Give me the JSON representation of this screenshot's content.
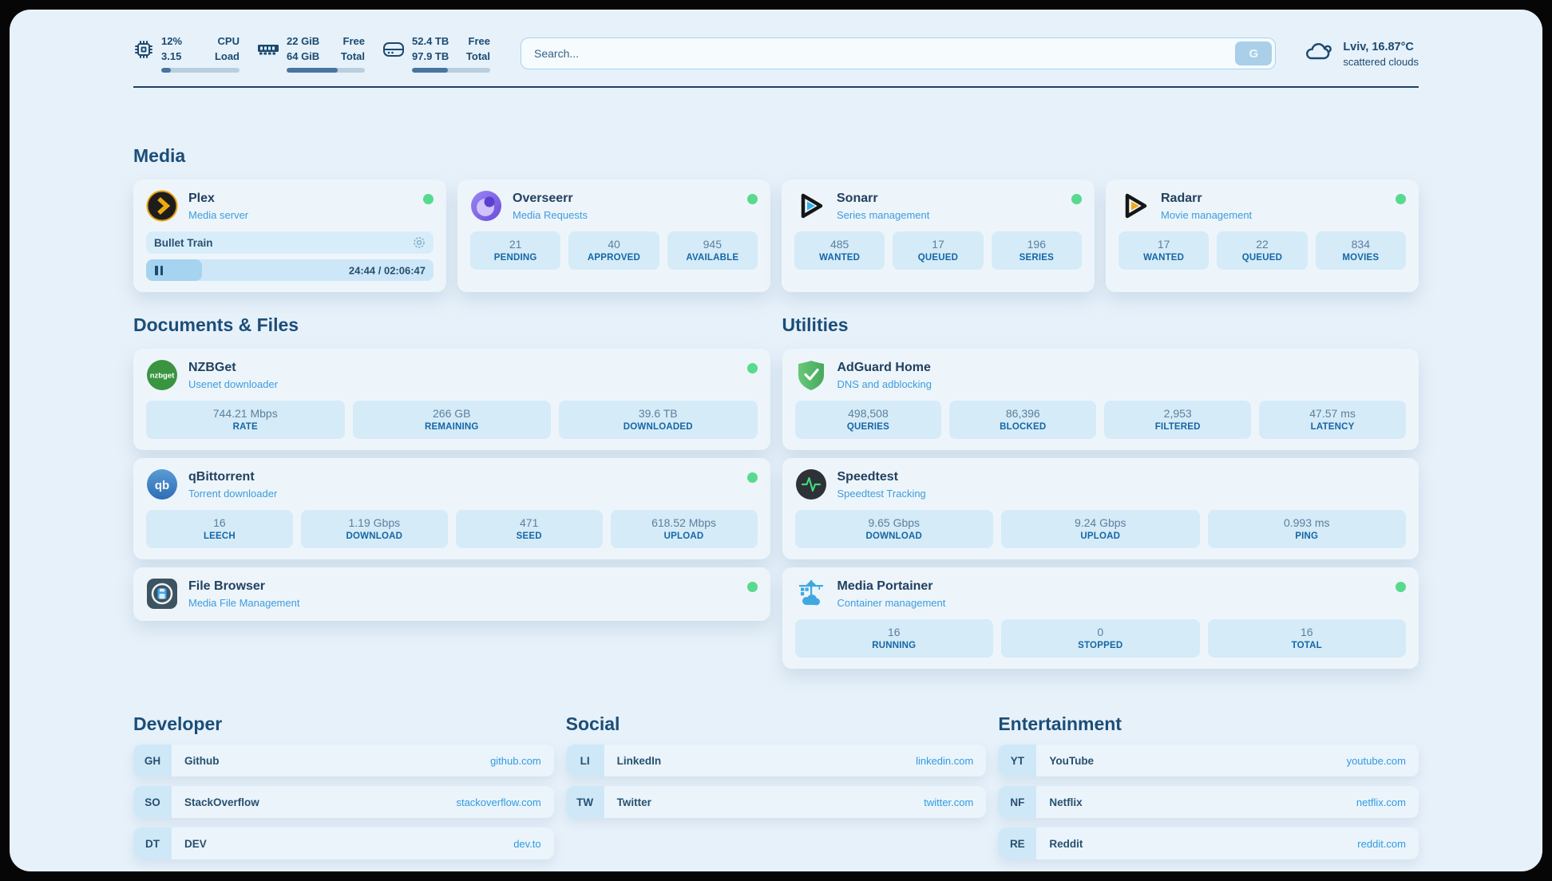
{
  "topbar": {
    "cpu": {
      "icon": "cpu-icon",
      "value1": "12%",
      "value2": "3.15",
      "label1": "CPU",
      "label2": "Load",
      "percent": 12
    },
    "ram": {
      "icon": "ram-icon",
      "value1": "22 GiB",
      "value2": "64 GiB",
      "label1": "Free",
      "label2": "Total",
      "percent": 65
    },
    "disk": {
      "icon": "disk-icon",
      "value1": "52.4 TB",
      "value2": "97.9 TB",
      "label1": "Free",
      "label2": "Total",
      "percent": 46
    },
    "search": {
      "placeholder": "Search...",
      "button_label": "G"
    },
    "weather": {
      "icon": "cloud-icon",
      "location": "Lviv, 16.87°C",
      "condition": "scattered clouds"
    }
  },
  "sections": {
    "media": {
      "title": "Media"
    },
    "documents": {
      "title": "Documents & Files"
    },
    "utilities": {
      "title": "Utilities"
    }
  },
  "apps": {
    "plex": {
      "icon": "plex-icon",
      "title": "Plex",
      "subtitle": "Media server",
      "online": true,
      "now_playing": "Bullet Train",
      "time_display": "24:44 / 02:06:47",
      "progress_percent": 19.5
    },
    "overseerr": {
      "icon": "overseerr-icon",
      "title": "Overseerr",
      "subtitle": "Media Requests",
      "online": true,
      "stats": [
        {
          "value": "21",
          "label": "PENDING"
        },
        {
          "value": "40",
          "label": "APPROVED"
        },
        {
          "value": "945",
          "label": "AVAILABLE"
        }
      ]
    },
    "sonarr": {
      "icon": "sonarr-icon",
      "title": "Sonarr",
      "subtitle": "Series management",
      "online": true,
      "stats": [
        {
          "value": "485",
          "label": "WANTED"
        },
        {
          "value": "17",
          "label": "QUEUED"
        },
        {
          "value": "196",
          "label": "SERIES"
        }
      ]
    },
    "radarr": {
      "icon": "radarr-icon",
      "title": "Radarr",
      "subtitle": "Movie management",
      "online": true,
      "stats": [
        {
          "value": "17",
          "label": "WANTED"
        },
        {
          "value": "22",
          "label": "QUEUED"
        },
        {
          "value": "834",
          "label": "MOVIES"
        }
      ]
    },
    "nzbget": {
      "icon": "nzbget-icon",
      "title": "NZBGet",
      "subtitle": "Usenet downloader",
      "online": true,
      "stats": [
        {
          "value": "744.21 Mbps",
          "label": "RATE"
        },
        {
          "value": "266 GB",
          "label": "REMAINING"
        },
        {
          "value": "39.6 TB",
          "label": "DOWNLOADED"
        }
      ]
    },
    "qbittorrent": {
      "icon": "qbittorrent-icon",
      "title": "qBittorrent",
      "subtitle": "Torrent downloader",
      "online": true,
      "stats": [
        {
          "value": "16",
          "label": "LEECH"
        },
        {
          "value": "1.19 Gbps",
          "label": "DOWNLOAD"
        },
        {
          "value": "471",
          "label": "SEED"
        },
        {
          "value": "618.52 Mbps",
          "label": "UPLOAD"
        }
      ]
    },
    "filebrowser": {
      "icon": "filebrowser-icon",
      "title": "File Browser",
      "subtitle": "Media File Management",
      "online": true
    },
    "adguard": {
      "icon": "adguard-icon",
      "title": "AdGuard Home",
      "subtitle": "DNS and adblocking",
      "stats": [
        {
          "value": "498,508",
          "label": "QUERIES"
        },
        {
          "value": "86,396",
          "label": "BLOCKED"
        },
        {
          "value": "2,953",
          "label": "FILTERED"
        },
        {
          "value": "47.57 ms",
          "label": "LATENCY"
        }
      ]
    },
    "speedtest": {
      "icon": "speedtest-icon",
      "title": "Speedtest",
      "subtitle": "Speedtest Tracking",
      "stats": [
        {
          "value": "9.65 Gbps",
          "label": "DOWNLOAD"
        },
        {
          "value": "9.24 Gbps",
          "label": "UPLOAD"
        },
        {
          "value": "0.993 ms",
          "label": "PING"
        }
      ]
    },
    "portainer": {
      "icon": "portainer-icon",
      "title": "Media Portainer",
      "subtitle": "Container management",
      "online": true,
      "stats": [
        {
          "value": "16",
          "label": "RUNNING"
        },
        {
          "value": "0",
          "label": "STOPPED"
        },
        {
          "value": "16",
          "label": "TOTAL"
        }
      ]
    }
  },
  "bookmarks": {
    "developer": {
      "title": "Developer",
      "items": [
        {
          "abbr": "GH",
          "label": "Github",
          "url": "github.com"
        },
        {
          "abbr": "SO",
          "label": "StackOverflow",
          "url": "stackoverflow.com"
        },
        {
          "abbr": "DT",
          "label": "DEV",
          "url": "dev.to"
        }
      ]
    },
    "social": {
      "title": "Social",
      "items": [
        {
          "abbr": "LI",
          "label": "LinkedIn",
          "url": "linkedin.com"
        },
        {
          "abbr": "TW",
          "label": "Twitter",
          "url": "twitter.com"
        }
      ]
    },
    "entertainment": {
      "title": "Entertainment",
      "items": [
        {
          "abbr": "YT",
          "label": "YouTube",
          "url": "youtube.com"
        },
        {
          "abbr": "NF",
          "label": "Netflix",
          "url": "netflix.com"
        },
        {
          "abbr": "RE",
          "label": "Reddit",
          "url": "reddit.com"
        }
      ]
    }
  },
  "colors": {
    "accent": "#3e9cdd",
    "online_dot": "#57da8e",
    "heading": "#1b4e78",
    "stat_value": "#5c7f9d",
    "stat_label": "#1566a5"
  }
}
